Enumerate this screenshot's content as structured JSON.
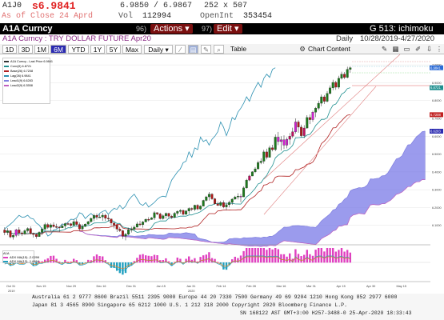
{
  "quote": {
    "ticker": "A1J0",
    "price": "s6.9841",
    "bidask": "6.9850 / 6.9867",
    "size": "252 x 507",
    "asof": "As of Close 24 Aprd",
    "vol_label": "Vol",
    "vol": "112994",
    "oi_label": "OpenInt",
    "oi": "353454"
  },
  "topbar": {
    "security": "A1A Curncy",
    "actions_num": "96)",
    "actions_label": "Actions ▾",
    "edit_num": "97)",
    "edit_label": "Edit ▾",
    "page_title": "G 513: ichimoku"
  },
  "subheader": {
    "description": "A1A Curncy : TRY DOLLAR FUTURE Apr20",
    "frequency": "Daily",
    "range": "10/28/2019-4/27/2020"
  },
  "toolbar": {
    "periods": [
      "1D",
      "3D",
      "1M",
      "6M",
      "YTD",
      "1Y",
      "5Y",
      "Max"
    ],
    "selected": "6M",
    "interval": "Daily ▾",
    "table_label": "Table",
    "chart_content_label": "Chart Content"
  },
  "legend": {
    "items": [
      {
        "text": "A1A Curncy - Last Price 6.9841",
        "color": "#333333"
      },
      {
        "text": "Conv(9) 6.8721",
        "color": "#1f8f8f"
      },
      {
        "text": "Base(26) 6.7208",
        "color": "#b02020"
      },
      {
        "text": "Lag(26) 6.9841",
        "color": "#2a8fb0"
      },
      {
        "text": "Lead1(9) 6.6283",
        "color": "#8080e0"
      },
      {
        "text": "Lead2(9) 6.3558",
        "color": "#c060c0"
      }
    ]
  },
  "sublegend": {
    "title": "A1A",
    "items": [
      {
        "text": "ADX MA(15) -2.0299",
        "color": "#e040c0"
      },
      {
        "text": "ADX MA(13) -1.6664",
        "color": "#20a0c0"
      }
    ]
  },
  "xaxis": {
    "labels": [
      "Oct 31",
      "Nov 15",
      "Nov 29",
      "Dec 16",
      "Dec 31",
      "Jan 15",
      "Jan 31",
      "Feb 14",
      "Feb 28",
      "Mar 16",
      "Mar 31",
      "Apr 15",
      "Apr 30",
      "May 15"
    ],
    "year_labels": [
      "2019",
      "2020"
    ]
  },
  "yaxis": {
    "labels": [
      "7.0000",
      "6.9000",
      "6.8000",
      "6.7000",
      "6.6000",
      "6.5000",
      "6.4000",
      "6.3000",
      "6.2000",
      "6.1000"
    ]
  },
  "price_tags": [
    {
      "text": "6.9841",
      "color": "#2b6bd6"
    },
    {
      "text": "6.8721",
      "color": "#1f8f8f"
    },
    {
      "text": "6.7208",
      "color": "#c02020"
    },
    {
      "text": "6.6283",
      "color": "#2b2bb0"
    }
  ],
  "chart_data": {
    "type": "candlestick",
    "series": [
      {
        "name": "A1A Curncy - Last Price",
        "ohlc": [
          [
            6.074,
            6.089,
            6.045,
            6.06
          ],
          [
            6.06,
            6.085,
            6.045,
            6.07
          ],
          [
            6.07,
            6.072,
            6.028,
            6.035
          ],
          [
            6.035,
            6.05,
            6.02,
            6.044
          ],
          [
            6.044,
            6.081,
            6.034,
            6.075
          ],
          [
            6.075,
            6.09,
            6.04,
            6.058
          ],
          [
            6.058,
            6.066,
            6.04,
            6.052
          ],
          [
            6.052,
            6.078,
            6.047,
            6.07
          ],
          [
            6.07,
            6.089,
            6.06,
            6.082
          ],
          [
            6.082,
            6.094,
            6.049,
            6.055
          ],
          [
            6.055,
            6.059,
            6.032,
            6.049
          ],
          [
            6.049,
            6.056,
            6.025,
            6.037
          ],
          [
            6.037,
            6.067,
            6.036,
            6.061
          ],
          [
            6.061,
            6.088,
            6.046,
            6.079
          ],
          [
            6.079,
            6.115,
            6.074,
            6.105
          ],
          [
            6.105,
            6.114,
            6.08,
            6.089
          ],
          [
            6.089,
            6.111,
            6.068,
            6.103
          ],
          [
            6.103,
            6.117,
            6.088,
            6.093
          ],
          [
            6.093,
            6.109,
            6.083,
            6.091
          ],
          [
            6.091,
            6.092,
            6.063,
            6.086
          ],
          [
            6.086,
            6.109,
            6.085,
            6.097
          ],
          [
            6.097,
            6.116,
            6.08,
            6.11
          ],
          [
            6.11,
            6.117,
            6.102,
            6.109
          ],
          [
            6.109,
            6.114,
            6.09,
            6.1
          ],
          [
            6.1,
            6.134,
            6.097,
            6.121
          ],
          [
            6.121,
            6.136,
            6.099,
            6.105
          ],
          [
            6.105,
            6.116,
            6.071,
            6.08
          ],
          [
            6.08,
            6.107,
            6.072,
            6.094
          ],
          [
            6.094,
            6.111,
            6.091,
            6.107
          ],
          [
            6.107,
            6.125,
            6.104,
            6.121
          ],
          [
            6.121,
            6.144,
            6.114,
            6.139
          ],
          [
            6.139,
            6.165,
            6.124,
            6.156
          ],
          [
            6.156,
            6.167,
            6.132,
            6.146
          ],
          [
            6.146,
            6.162,
            6.143,
            6.147
          ],
          [
            6.147,
            6.171,
            6.126,
            6.157
          ],
          [
            6.157,
            6.165,
            6.125,
            6.14
          ],
          [
            6.14,
            6.159,
            6.122,
            6.136
          ],
          [
            6.136,
            6.138,
            6.098,
            6.113
          ],
          [
            6.113,
            6.116,
            6.083,
            6.102
          ],
          [
            6.102,
            6.105,
            6.063,
            6.079
          ],
          [
            6.079,
            6.09,
            6.063,
            6.07
          ],
          [
            6.07,
            6.074,
            6.024,
            6.04
          ],
          [
            6.04,
            6.058,
            6.016,
            6.05
          ],
          [
            6.05,
            6.087,
            6.045,
            6.075
          ],
          [
            6.075,
            6.093,
            6.06,
            6.078
          ],
          [
            6.078,
            6.099,
            6.072,
            6.09
          ],
          [
            6.09,
            6.12,
            6.088,
            6.108
          ],
          [
            6.108,
            6.126,
            6.095,
            6.104
          ],
          [
            6.104,
            6.125,
            6.087,
            6.119
          ],
          [
            6.119,
            6.139,
            6.119,
            6.134
          ],
          [
            6.134,
            6.146,
            6.122,
            6.133
          ],
          [
            6.133,
            6.147,
            6.131,
            6.142
          ],
          [
            6.142,
            6.18,
            6.13,
            6.171
          ],
          [
            6.171,
            6.173,
            6.157,
            6.164
          ],
          [
            6.164,
            6.171,
            6.133,
            6.138
          ],
          [
            6.138,
            6.162,
            6.132,
            6.154
          ],
          [
            6.154,
            6.172,
            6.138,
            6.167
          ],
          [
            6.167,
            6.171,
            6.138,
            6.151
          ],
          [
            6.151,
            6.159,
            6.136,
            6.145
          ],
          [
            6.145,
            6.175,
            6.14,
            6.168
          ],
          [
            6.168,
            6.184,
            6.155,
            6.178
          ],
          [
            6.178,
            6.191,
            6.166,
            6.184
          ],
          [
            6.184,
            6.188,
            6.156,
            6.162
          ],
          [
            6.162,
            6.185,
            6.16,
            6.181
          ],
          [
            6.181,
            6.201,
            6.164,
            6.195
          ],
          [
            6.195,
            6.2,
            6.18,
            6.19
          ],
          [
            6.19,
            6.216,
            6.18,
            6.213
          ],
          [
            6.213,
            6.219,
            6.185,
            6.192
          ],
          [
            6.192,
            6.213,
            6.186,
            6.208
          ],
          [
            6.208,
            6.244,
            6.207,
            6.24
          ],
          [
            6.24,
            6.266,
            6.234,
            6.26
          ],
          [
            6.26,
            6.287,
            6.239,
            6.275
          ],
          [
            6.275,
            6.281,
            6.243,
            6.249
          ],
          [
            6.249,
            6.254,
            6.216,
            6.221
          ],
          [
            6.221,
            6.233,
            6.209,
            6.212
          ],
          [
            6.212,
            6.237,
            6.206,
            6.228
          ],
          [
            6.228,
            6.24,
            6.196,
            6.203
          ],
          [
            6.203,
            6.227,
            6.185,
            6.216
          ],
          [
            6.216,
            6.239,
            6.201,
            6.229
          ],
          [
            6.229,
            6.252,
            6.215,
            6.247
          ],
          [
            6.247,
            6.266,
            6.244,
            6.259
          ],
          [
            6.259,
            6.28,
            6.245,
            6.264
          ],
          [
            6.264,
            6.276,
            6.23,
            6.26
          ],
          [
            6.26,
            6.319,
            6.259,
            6.31
          ],
          [
            6.31,
            6.361,
            6.306,
            6.354
          ],
          [
            6.354,
            6.384,
            6.348,
            6.377
          ],
          [
            6.377,
            6.404,
            6.376,
            6.4
          ],
          [
            6.4,
            6.427,
            6.393,
            6.417
          ],
          [
            6.417,
            6.463,
            6.414,
            6.452
          ],
          [
            6.452,
            6.476,
            6.443,
            6.46
          ],
          [
            6.46,
            6.524,
            6.446,
            6.512
          ],
          [
            6.512,
            6.53,
            6.47,
            6.482
          ],
          [
            6.482,
            6.547,
            6.48,
            6.535
          ],
          [
            6.535,
            6.552,
            6.515,
            6.525
          ],
          [
            6.525,
            6.61,
            6.516,
            6.595
          ],
          [
            6.595,
            6.624,
            6.55,
            6.57
          ],
          [
            6.57,
            6.6,
            6.52,
            6.58
          ],
          [
            6.58,
            6.605,
            6.528,
            6.55
          ],
          [
            6.55,
            6.594,
            6.532,
            6.583
          ],
          [
            6.583,
            6.618,
            6.553,
            6.6
          ],
          [
            6.6,
            6.648,
            6.59,
            6.625
          ],
          [
            6.625,
            6.7,
            6.615,
            6.68
          ],
          [
            6.68,
            6.69,
            6.62,
            6.651
          ],
          [
            6.651,
            6.665,
            6.595,
            6.603
          ],
          [
            6.603,
            6.662,
            6.59,
            6.646
          ],
          [
            6.646,
            6.718,
            6.642,
            6.705
          ],
          [
            6.705,
            6.722,
            6.668,
            6.693
          ],
          [
            6.693,
            6.743,
            6.681,
            6.735
          ],
          [
            6.735,
            6.764,
            6.707,
            6.757
          ],
          [
            6.757,
            6.799,
            6.747,
            6.785
          ],
          [
            6.785,
            6.834,
            6.768,
            6.821
          ],
          [
            6.821,
            6.831,
            6.781,
            6.796
          ],
          [
            6.796,
            6.853,
            6.79,
            6.84
          ],
          [
            6.84,
            6.885,
            6.834,
            6.871
          ],
          [
            6.871,
            6.917,
            6.858,
            6.902
          ],
          [
            6.902,
            6.911,
            6.86,
            6.875
          ],
          [
            6.875,
            6.939,
            6.865,
            6.925
          ],
          [
            6.925,
            6.962,
            6.918,
            6.948
          ],
          [
            6.948,
            6.96,
            6.92,
            6.93
          ],
          [
            6.93,
            6.99,
            6.925,
            6.975
          ],
          [
            6.975,
            6.992,
            6.955,
            6.984
          ]
        ],
        "highlight_up": [
          4,
          82,
          95,
          96,
          97,
          98,
          101,
          107
        ],
        "highlight_down": [
          85,
          99,
          100,
          104
        ]
      }
    ],
    "ichimoku": {
      "conversion_last": 6.8721,
      "base_last": 6.7208,
      "lagging_last": 6.9841,
      "lead1_last": 6.6283,
      "lead2_last": 6.3558
    },
    "yrange": [
      6.0,
      7.05
    ],
    "lower_panel": {
      "title": "A1A",
      "series": [
        {
          "name": "ADX MA(15)",
          "last": -2.0299
        },
        {
          "name": "ADX MA(13)",
          "last": -1.6664
        }
      ]
    }
  },
  "footer": {
    "line1": "Australia 61 2 9777 8600 Brazil 5511 2395 9000 Europe 44 20 7330 7500 Germany 49 69 9204 1210 Hong Kong 852 2977 6000",
    "line2": "Japan 81 3 4565 8900       Singapore 65 6212 1000       U.S. 1 212 318 2000       Copyright 2020 Bloomberg Finance L.P.",
    "line3": "SN 168122 AST  GMT+3:00 H257-3488-0 25-Apr-2020 18:33:43"
  }
}
